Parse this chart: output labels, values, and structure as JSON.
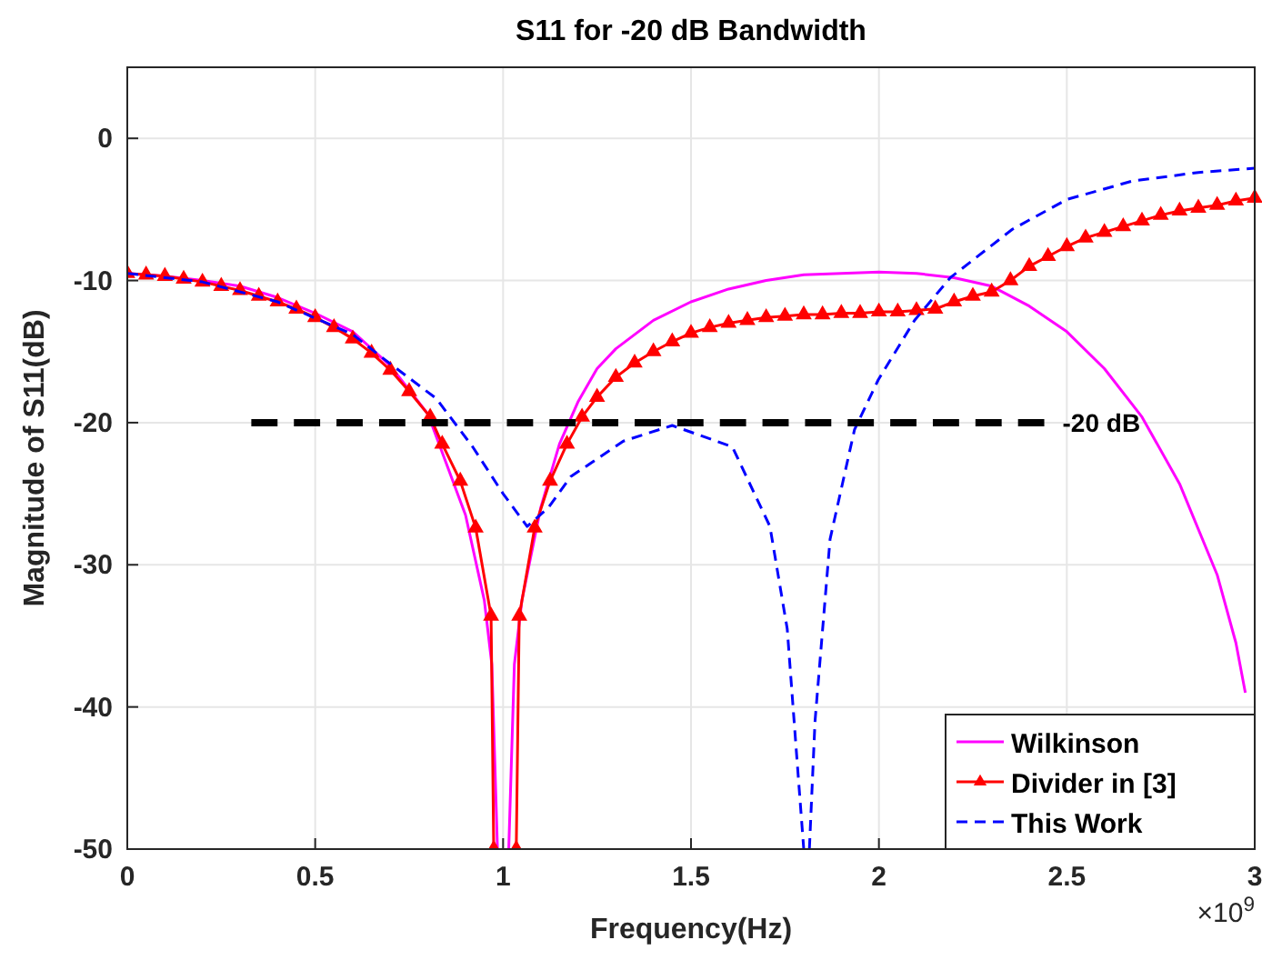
{
  "chart_data": {
    "type": "line",
    "title": "S11 for -20 dB Bandwidth",
    "xlabel": "Frequency(Hz)",
    "ylabel": "Magnitude of S11(dB)",
    "xlim": [
      0,
      3
    ],
    "xticks": [
      0,
      0.5,
      1,
      1.5,
      2,
      2.5,
      3
    ],
    "ylim": [
      -50,
      5
    ],
    "yticks": [
      -50,
      -40,
      -30,
      -20,
      -10,
      0
    ],
    "grid": true,
    "legend": "bottom right",
    "annotations": [
      "-20 dB",
      "×10$^{9}$"
    ],
    "series": [
      {
        "name": "Wilkinson",
        "color": "#ff00ff",
        "line_style": "solid",
        "marker": "none",
        "x": [
          0,
          0.1,
          0.2,
          0.3,
          0.4,
          0.5,
          0.6,
          0.7,
          0.8,
          0.9,
          0.95,
          0.97,
          0.985,
          1.0,
          1.015,
          1.03,
          1.05,
          1.1,
          1.15,
          1.2,
          1.25,
          1.3,
          1.4,
          1.5,
          1.6,
          1.7,
          1.8,
          1.9,
          2.0,
          2.1,
          2.2,
          2.3,
          2.4,
          2.5,
          2.6,
          2.7,
          2.8,
          2.9,
          2.95,
          2.975
        ],
        "values": [
          -9.5,
          -9.7,
          -10.0,
          -10.4,
          -11.2,
          -12.3,
          -13.6,
          -16.0,
          -19.4,
          -26.5,
          -32.5,
          -37,
          -50,
          null,
          -50,
          -37,
          -32.5,
          -26,
          -21.5,
          -18.5,
          -16.2,
          -14.8,
          -12.8,
          -11.5,
          -10.6,
          -10.0,
          -9.6,
          -9.5,
          -9.4,
          -9.5,
          -9.8,
          -10.4,
          -11.8,
          -13.6,
          -16.2,
          -19.6,
          -24.3,
          -30.7,
          -35.5,
          -39
        ]
      },
      {
        "name": "Divider in [3]",
        "color": "#ff0000",
        "line_style": "solid",
        "marker": "triangle",
        "x": [
          0,
          0.05,
          0.1,
          0.15,
          0.2,
          0.25,
          0.3,
          0.35,
          0.4,
          0.45,
          0.5,
          0.55,
          0.6,
          0.65,
          0.7,
          0.75,
          0.806,
          0.838,
          0.886,
          0.927,
          0.968,
          0.975,
          1.0,
          1.035,
          1.043,
          1.084,
          1.125,
          1.17,
          1.21,
          1.25,
          1.3,
          1.35,
          1.4,
          1.45,
          1.5,
          1.55,
          1.6,
          1.65,
          1.7,
          1.75,
          1.8,
          1.85,
          1.9,
          1.95,
          2.0,
          2.05,
          2.1,
          2.15,
          2.2,
          2.25,
          2.3,
          2.35,
          2.4,
          2.45,
          2.5,
          2.55,
          2.6,
          2.65,
          2.7,
          2.75,
          2.8,
          2.85,
          2.9,
          2.95,
          3.0
        ],
        "values": [
          -9.5,
          -9.6,
          -9.7,
          -9.9,
          -10.1,
          -10.4,
          -10.7,
          -11.1,
          -11.5,
          -12.0,
          -12.6,
          -13.3,
          -14.1,
          -15.1,
          -16.3,
          -17.8,
          -19.6,
          -21.5,
          -24.1,
          -27.4,
          -33.6,
          -50,
          null,
          -50,
          -33.6,
          -27.4,
          -24.1,
          -21.5,
          -19.6,
          -18.2,
          -16.8,
          -15.8,
          -15.0,
          -14.3,
          -13.7,
          -13.3,
          -13.0,
          -12.8,
          -12.6,
          -12.5,
          -12.4,
          -12.4,
          -12.3,
          -12.3,
          -12.2,
          -12.2,
          -12.1,
          -12.0,
          -11.5,
          -11.1,
          -10.8,
          -10.0,
          -9.0,
          -8.3,
          -7.6,
          -7.0,
          -6.6,
          -6.2,
          -5.8,
          -5.4,
          -5.1,
          -4.9,
          -4.7,
          -4.4,
          -4.2
        ]
      },
      {
        "name": "This Work",
        "color": "#0000ff",
        "line_style": "dashed",
        "marker": "none",
        "x": [
          0,
          0.2,
          0.4,
          0.6,
          0.677,
          0.822,
          0.919,
          1.0,
          1.064,
          1.12,
          1.18,
          1.32,
          1.45,
          1.61,
          1.71,
          1.756,
          1.78,
          1.8,
          1.808,
          1.815,
          1.83,
          1.87,
          1.935,
          1.998,
          2.095,
          2.19,
          2.355,
          2.5,
          2.675,
          2.85,
          3.0
        ],
        "values": [
          -9.5,
          -10.1,
          -11.5,
          -13.8,
          -15.4,
          -18.3,
          -21.7,
          -25,
          -27.3,
          -26,
          -23.8,
          -21.3,
          -20.2,
          -21.7,
          -27.3,
          -34.5,
          -43,
          -50,
          null,
          -50,
          -41,
          -28.2,
          -20.5,
          -17,
          -12.8,
          -9.8,
          -6.4,
          -4.3,
          -3,
          -2.4,
          -2.1
        ]
      },
      {
        "color": "#000000",
        "line_style": "dashed",
        "marker": "none",
        "x": [
          0.33,
          2.44
        ],
        "values": [
          -20,
          -20
        ]
      }
    ]
  }
}
